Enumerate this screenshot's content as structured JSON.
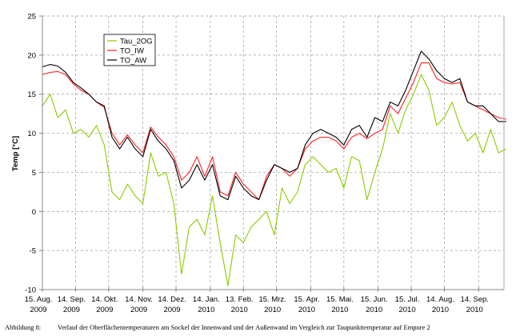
{
  "chart_data": {
    "type": "line",
    "title": "",
    "xlabel": "",
    "ylabel": "Temp [°C]",
    "ylim": [
      -10,
      25
    ],
    "yticks": [
      "25",
      "20",
      "15",
      "10",
      "5",
      "0",
      "-5",
      "-10"
    ],
    "xlim": [
      "2009-08-15",
      "2010-10-07"
    ],
    "xticks": [
      {
        "date": "2009-08-15",
        "l1": "15. Aug.",
        "l2": "2009"
      },
      {
        "date": "2009-09-14",
        "l1": "14. Sep.",
        "l2": "2009"
      },
      {
        "date": "2009-10-14",
        "l1": "14. Okt.",
        "l2": "2009"
      },
      {
        "date": "2009-11-14",
        "l1": "14. Nov.",
        "l2": "2009"
      },
      {
        "date": "2009-12-14",
        "l1": "14. Dez.",
        "l2": "2009"
      },
      {
        "date": "2010-01-14",
        "l1": "14. Jan.",
        "l2": "2010"
      },
      {
        "date": "2010-02-13",
        "l1": "13. Feb.",
        "l2": "2010"
      },
      {
        "date": "2010-03-15",
        "l1": "15. Mrz.",
        "l2": "2010"
      },
      {
        "date": "2010-04-15",
        "l1": "15. Apr.",
        "l2": "2010"
      },
      {
        "date": "2010-05-15",
        "l1": "15. Mai.",
        "l2": "2010"
      },
      {
        "date": "2010-06-15",
        "l1": "15. Jun.",
        "l2": "2010"
      },
      {
        "date": "2010-07-15",
        "l1": "15. Jul.",
        "l2": "2010"
      },
      {
        "date": "2010-08-14",
        "l1": "14. Aug.",
        "l2": "2010"
      },
      {
        "date": "2010-09-14",
        "l1": "14. Sep.",
        "l2": "2010"
      }
    ],
    "grid": true,
    "legend_position": "top-left",
    "x_start": "2009-08-15",
    "x_step_days": 7,
    "series": [
      {
        "name": "Tau_2OG",
        "color": "#8ccc00",
        "values": [
          13.5,
          15.0,
          12.0,
          13.0,
          10.0,
          10.5,
          9.5,
          11.0,
          8.5,
          2.5,
          1.5,
          3.5,
          2.0,
          1.0,
          7.5,
          4.5,
          5.0,
          1.0,
          -8.0,
          -2.0,
          -1.0,
          -3.0,
          2.0,
          -4.0,
          -9.5,
          -3.0,
          -4.0,
          -2.0,
          -1.0,
          0.0,
          -3.0,
          3.0,
          1.0,
          2.5,
          6.0,
          7.0,
          6.0,
          5.0,
          5.5,
          3.0,
          7.0,
          6.5,
          1.5,
          5.0,
          8.0,
          12.5,
          10.0,
          13.0,
          15.0,
          17.5,
          15.5,
          11.0,
          12.0,
          14.0,
          11.0,
          9.0,
          10.0,
          7.5,
          10.5,
          7.5,
          8.0
        ]
      },
      {
        "name": "TO_IW",
        "color": "#ff2020",
        "values": [
          17.5,
          17.8,
          17.9,
          17.5,
          16.3,
          15.5,
          15.0,
          14.0,
          13.3,
          10.0,
          8.5,
          9.8,
          8.5,
          7.5,
          10.8,
          9.5,
          8.5,
          7.0,
          4.0,
          5.0,
          7.0,
          4.5,
          7.0,
          2.5,
          2.0,
          5.0,
          3.5,
          2.5,
          1.5,
          4.5,
          6.0,
          5.5,
          4.5,
          5.5,
          8.0,
          9.0,
          9.5,
          9.5,
          9.0,
          8.0,
          9.5,
          10.0,
          9.3,
          10.0,
          10.5,
          13.5,
          12.5,
          14.5,
          16.5,
          19.0,
          19.0,
          17.0,
          16.5,
          16.3,
          16.5,
          14.0,
          13.5,
          13.0,
          12.5,
          12.0,
          11.8
        ]
      },
      {
        "name": "TO_AW",
        "color": "#000000",
        "values": [
          18.5,
          18.8,
          18.6,
          17.8,
          16.5,
          15.8,
          15.0,
          14.0,
          13.5,
          9.5,
          8.0,
          9.5,
          8.0,
          7.0,
          10.5,
          9.0,
          8.0,
          6.5,
          3.0,
          4.0,
          6.0,
          4.0,
          6.0,
          2.0,
          1.5,
          4.5,
          3.0,
          2.0,
          1.5,
          4.0,
          6.0,
          5.5,
          5.0,
          5.5,
          8.5,
          10.0,
          10.5,
          10.0,
          9.5,
          8.5,
          10.5,
          11.0,
          9.5,
          12.0,
          11.5,
          14.0,
          13.5,
          15.5,
          18.0,
          20.5,
          19.5,
          18.0,
          17.0,
          16.5,
          17.0,
          14.0,
          13.5,
          13.5,
          12.5,
          11.5,
          11.5
        ]
      }
    ]
  },
  "caption": {
    "label": "Abbildung 8:",
    "text": "Verlauf der Oberflächentemperaturen am Sockel der Innenwand und der Außenwand im Vergleich zur Taupunkttemperatur auf Empore 2"
  }
}
